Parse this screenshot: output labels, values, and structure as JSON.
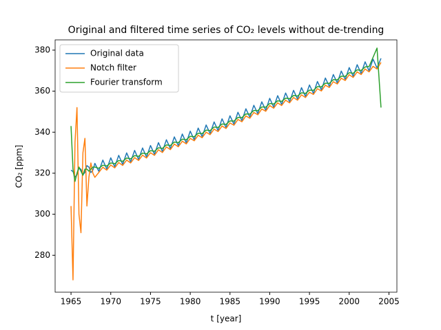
{
  "chart_data": {
    "type": "line",
    "title": "Original and filtered time series of CO₂ levels without de-trending",
    "x_label": "t [year]",
    "y_label": "CO₂ [ppm]",
    "x": [
      1965,
      1965.25,
      1965.5,
      1965.75,
      1966,
      1966.25,
      1966.5,
      1966.75,
      1967,
      1967.25,
      1967.5,
      1967.75,
      1968,
      1968.5,
      1969,
      1969.5,
      1970,
      1970.5,
      1971,
      1971.5,
      1972,
      1972.5,
      1973,
      1973.5,
      1974,
      1974.5,
      1975,
      1975.5,
      1976,
      1976.5,
      1977,
      1977.5,
      1978,
      1978.5,
      1979,
      1979.5,
      1980,
      1980.5,
      1981,
      1981.5,
      1982,
      1982.5,
      1983,
      1983.5,
      1984,
      1984.5,
      1985,
      1985.5,
      1986,
      1986.5,
      1987,
      1987.5,
      1988,
      1988.5,
      1989,
      1989.5,
      1990,
      1990.5,
      1991,
      1991.5,
      1992,
      1992.5,
      1993,
      1993.5,
      1994,
      1994.5,
      1995,
      1995.5,
      1996,
      1996.5,
      1997,
      1997.5,
      1998,
      1998.5,
      1999,
      1999.5,
      2000,
      2000.5,
      2001,
      2001.5,
      2002,
      2002.5,
      2003,
      2003.5,
      2004
    ],
    "series": [
      {
        "name": "Original data",
        "color": "#1f77b4",
        "values": [
          321.5,
          320.8,
          318.1,
          319.3,
          322.6,
          321.9,
          319.2,
          320.4,
          323.7,
          323.0,
          320.3,
          321.5,
          324.8,
          320.9,
          326.4,
          322.0,
          327.5,
          323.1,
          328.7,
          324.3,
          329.9,
          325.5,
          331.1,
          326.7,
          332.3,
          327.9,
          333.5,
          329.2,
          334.9,
          330.6,
          336.3,
          332.0,
          337.7,
          333.4,
          339.1,
          334.8,
          340.5,
          336.3,
          342.0,
          337.8,
          343.5,
          339.3,
          345.0,
          340.8,
          346.5,
          342.3,
          348.0,
          343.9,
          349.7,
          345.6,
          351.4,
          347.3,
          353.1,
          349.0,
          354.8,
          350.7,
          356.5,
          352.2,
          357.8,
          353.5,
          359.1,
          354.8,
          360.4,
          356.1,
          361.7,
          357.4,
          363.0,
          358.9,
          364.7,
          360.6,
          366.4,
          362.3,
          368.1,
          364.0,
          369.8,
          365.7,
          371.5,
          367.2,
          372.9,
          368.6,
          374.3,
          369.9,
          375.6,
          371.3,
          376.0
        ]
      },
      {
        "name": "Notch filter",
        "color": "#ff7f0e",
        "values": [
          304,
          268,
          335,
          352,
          300,
          291,
          330,
          337,
          304,
          318,
          325,
          320,
          318,
          320.4,
          322.9,
          321.5,
          324.0,
          322.6,
          325.2,
          323.8,
          326.4,
          325.0,
          327.6,
          326.2,
          328.8,
          327.4,
          330.0,
          328.7,
          331.4,
          330.1,
          332.8,
          331.5,
          334.2,
          332.9,
          335.6,
          334.3,
          337.0,
          335.8,
          338.5,
          337.3,
          340.0,
          338.8,
          341.5,
          340.3,
          343.0,
          341.8,
          344.5,
          343.4,
          346.2,
          345.1,
          347.9,
          346.8,
          349.6,
          348.5,
          351.3,
          350.2,
          353.0,
          351.7,
          354.3,
          353.0,
          355.6,
          354.3,
          356.9,
          355.6,
          358.2,
          356.9,
          359.5,
          358.4,
          361.2,
          360.1,
          362.9,
          361.8,
          364.6,
          363.5,
          366.3,
          365.2,
          368.0,
          366.7,
          369.4,
          368.1,
          370.8,
          369.4,
          372.1,
          370.8,
          374.0
        ]
      },
      {
        "name": "Fourier transform",
        "color": "#2ca02c",
        "values": [
          343,
          322,
          316,
          320,
          323,
          321,
          319,
          322,
          322,
          321,
          322,
          323,
          323,
          322.4,
          323.9,
          323.5,
          325.0,
          324.6,
          326.2,
          325.8,
          327.4,
          327.0,
          328.6,
          328.2,
          329.8,
          329.4,
          331.0,
          330.7,
          332.4,
          332.1,
          333.8,
          333.5,
          335.2,
          334.9,
          336.6,
          336.3,
          338.0,
          337.8,
          339.5,
          339.3,
          341.0,
          340.8,
          342.5,
          342.3,
          344.0,
          343.8,
          345.5,
          345.4,
          347.2,
          347.1,
          348.9,
          348.8,
          350.6,
          350.5,
          352.3,
          352.2,
          354.0,
          353.7,
          355.3,
          355.0,
          356.6,
          356.3,
          357.9,
          357.6,
          359.2,
          358.9,
          360.5,
          360.4,
          362.2,
          362.1,
          363.9,
          363.8,
          365.6,
          365.5,
          367.3,
          367.2,
          369.0,
          368.7,
          370.4,
          370.1,
          371.8,
          372.0,
          376.5,
          381.0,
          352.0
        ]
      }
    ],
    "xlim": [
      1963.0,
      2006.0
    ],
    "xticks": [
      1965,
      1970,
      1975,
      1980,
      1985,
      1990,
      1995,
      2000,
      2005
    ],
    "ylim": [
      262,
      385
    ],
    "yticks": [
      280,
      300,
      320,
      340,
      360,
      380
    ],
    "legend": "upper left"
  }
}
